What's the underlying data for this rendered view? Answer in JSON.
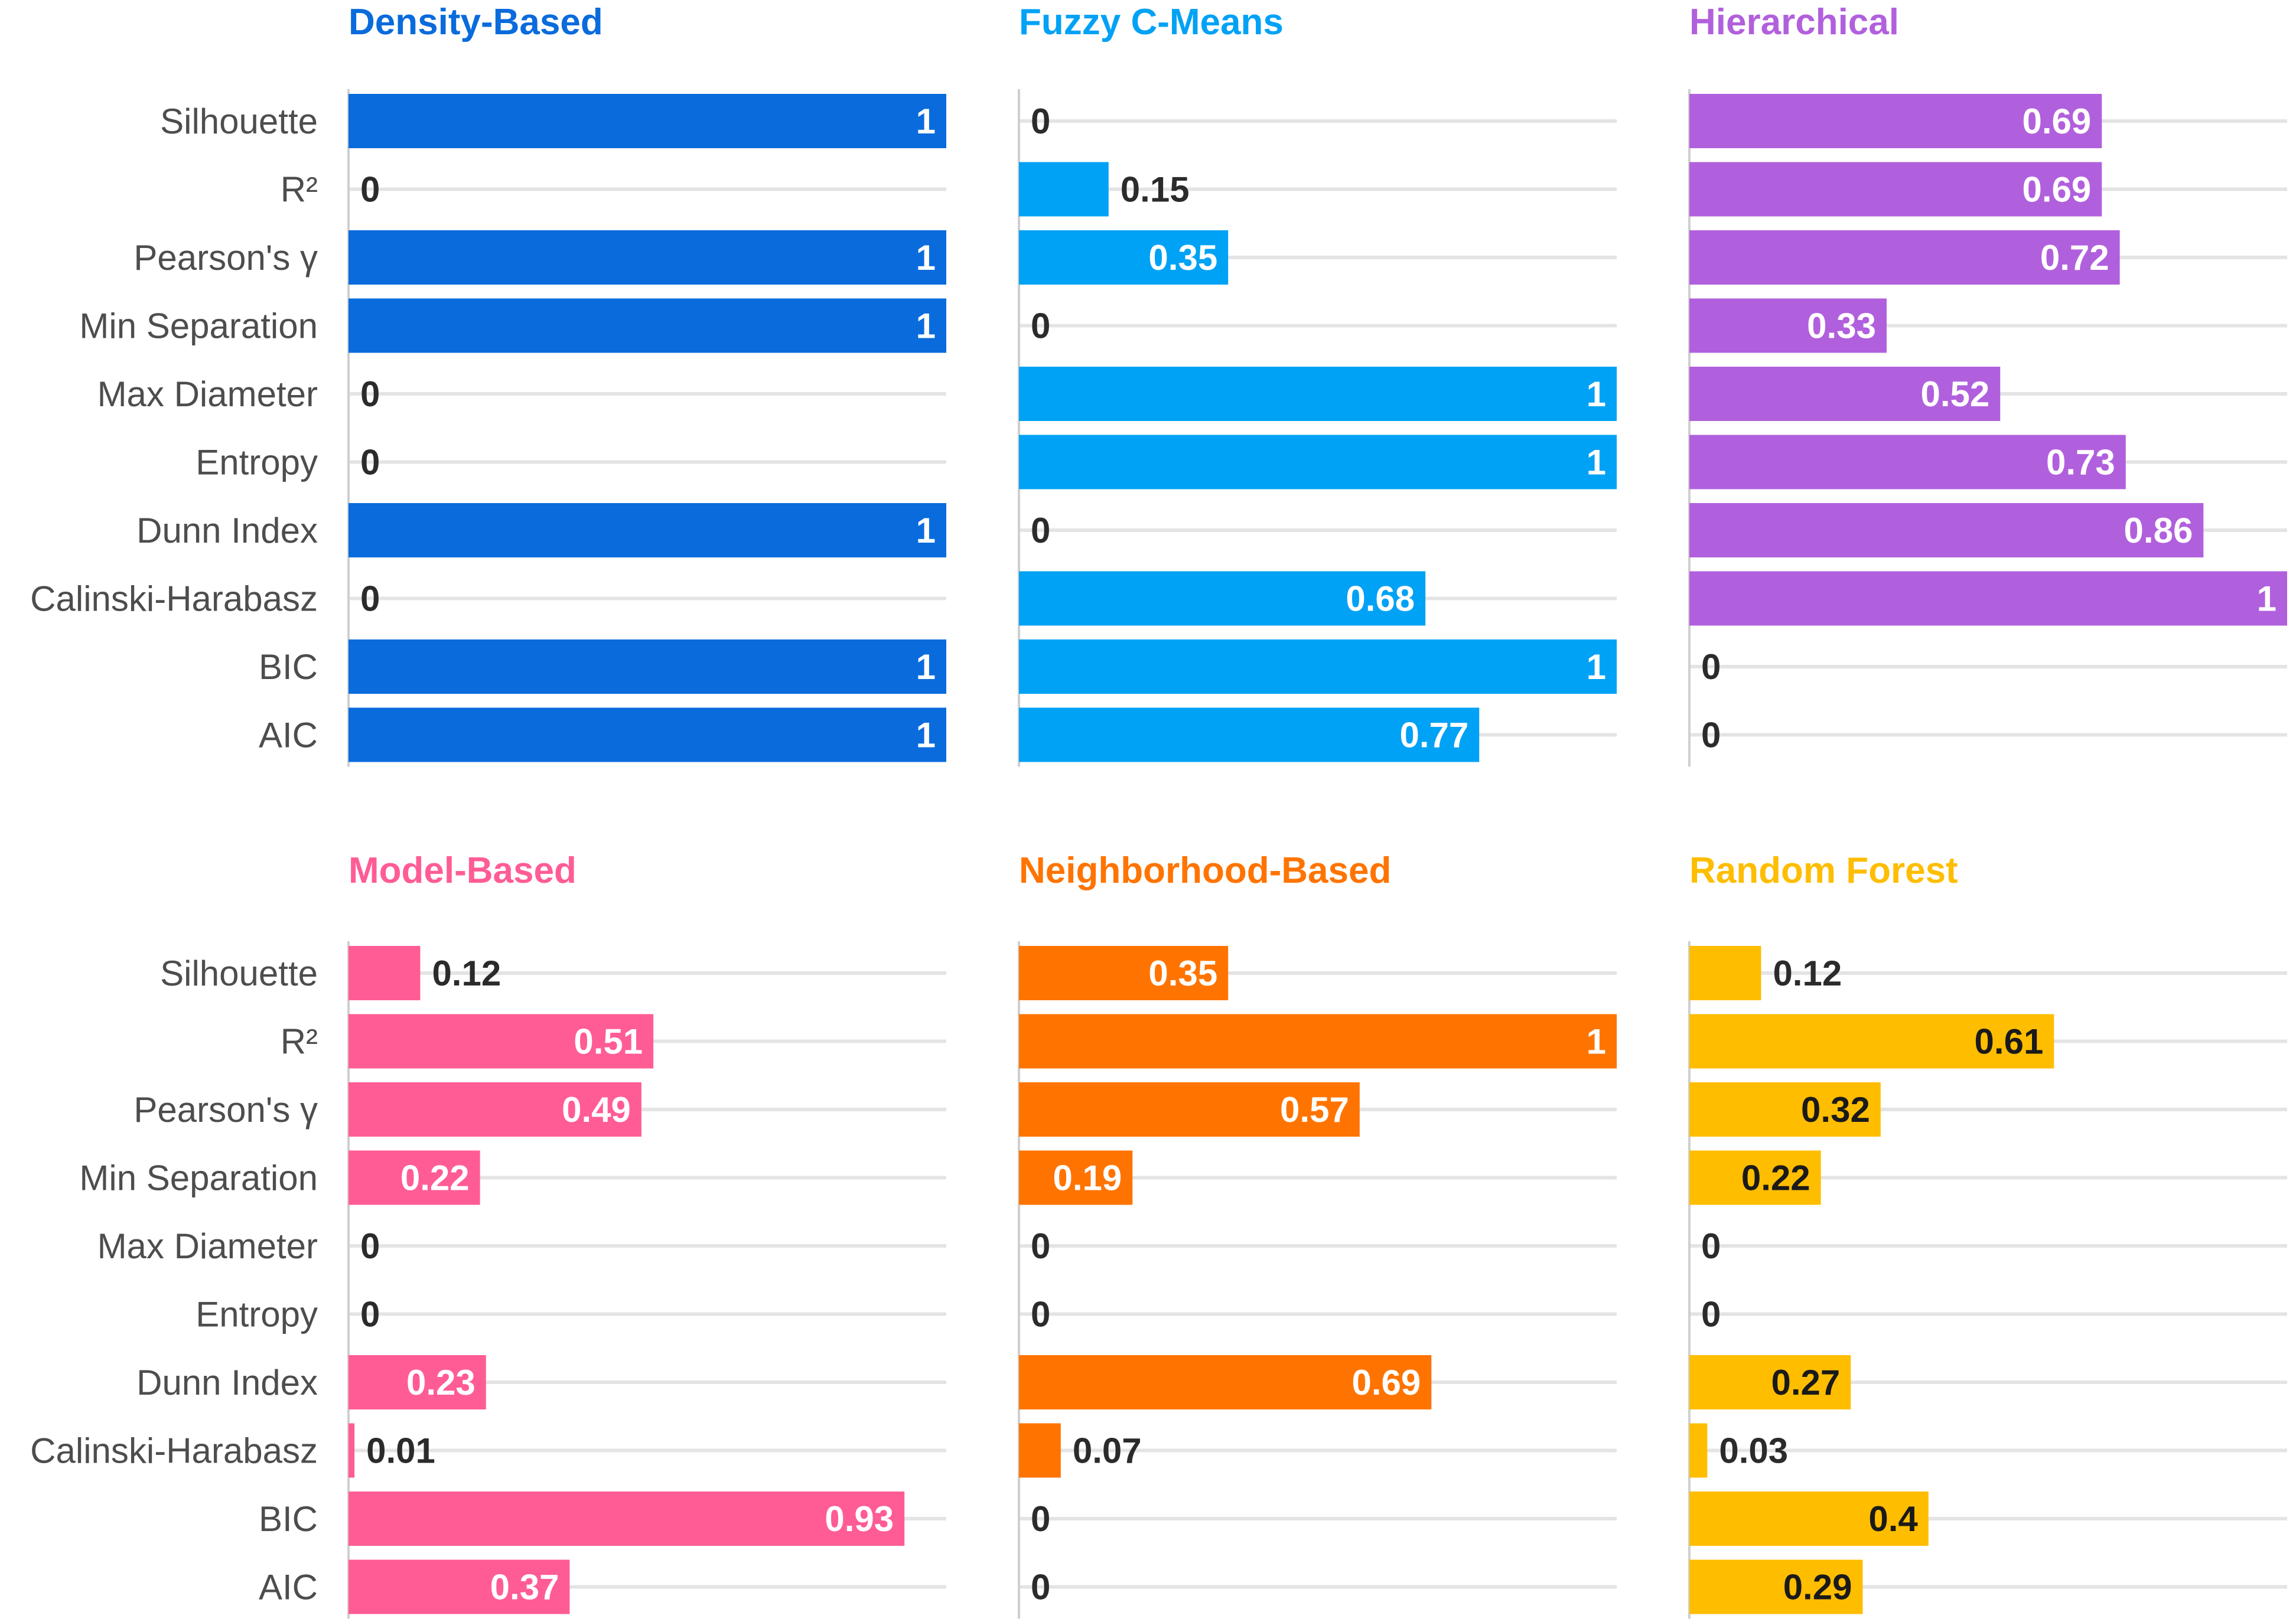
{
  "chart_data": [
    {
      "type": "bar",
      "orientation": "horizontal",
      "title": "Density-Based",
      "color": "#0a6bdc",
      "categories": [
        "Silhouette",
        "R²",
        "Pearson's γ",
        "Min Separation",
        "Max Diameter",
        "Entropy",
        "Dunn Index",
        "Calinski-Harabasz",
        "BIC",
        "AIC"
      ],
      "values": [
        1,
        0,
        1,
        1,
        0,
        0,
        1,
        0,
        1,
        1
      ],
      "labels": [
        "1",
        "0",
        "1",
        "1",
        "0",
        "0",
        "1",
        "0",
        "1",
        "1"
      ],
      "xlim": [
        0,
        1
      ],
      "grid": true
    },
    {
      "type": "bar",
      "orientation": "horizontal",
      "title": "Fuzzy C-Means",
      "color": "#00a2f5",
      "categories": [
        "Silhouette",
        "R²",
        "Pearson's γ",
        "Min Separation",
        "Max Diameter",
        "Entropy",
        "Dunn Index",
        "Calinski-Harabasz",
        "BIC",
        "AIC"
      ],
      "values": [
        0,
        0.15,
        0.35,
        0,
        1,
        1,
        0,
        0.68,
        1,
        0.77
      ],
      "labels": [
        "0",
        "0.15",
        "0.35",
        "0",
        "1",
        "1",
        "0",
        "0.68",
        "1",
        "0.77"
      ],
      "xlim": [
        0,
        1
      ],
      "grid": true
    },
    {
      "type": "bar",
      "orientation": "horizontal",
      "title": "Hierarchical",
      "color": "#b160dd",
      "categories": [
        "Silhouette",
        "R²",
        "Pearson's γ",
        "Min Separation",
        "Max Diameter",
        "Entropy",
        "Dunn Index",
        "Calinski-Harabasz",
        "BIC",
        "AIC"
      ],
      "values": [
        0.69,
        0.69,
        0.72,
        0.33,
        0.52,
        0.73,
        0.86,
        1,
        0,
        0
      ],
      "labels": [
        "0.69",
        "0.69",
        "0.72",
        "0.33",
        "0.52",
        "0.73",
        "0.86",
        "1",
        "0",
        "0"
      ],
      "xlim": [
        0,
        1
      ],
      "grid": true
    },
    {
      "type": "bar",
      "orientation": "horizontal",
      "title": "Model-Based",
      "color": "#ff5c96",
      "categories": [
        "Silhouette",
        "R²",
        "Pearson's γ",
        "Min Separation",
        "Max Diameter",
        "Entropy",
        "Dunn Index",
        "Calinski-Harabasz",
        "BIC",
        "AIC"
      ],
      "values": [
        0.12,
        0.51,
        0.49,
        0.22,
        0,
        0,
        0.23,
        0.01,
        0.93,
        0.37
      ],
      "labels": [
        "0.12",
        "0.51",
        "0.49",
        "0.22",
        "0",
        "0",
        "0.23",
        "0.01",
        "0.93",
        "0.37"
      ],
      "xlim": [
        0,
        1
      ],
      "grid": true
    },
    {
      "type": "bar",
      "orientation": "horizontal",
      "title": "Neighborhood-Based",
      "color": "#ff7400",
      "categories": [
        "Silhouette",
        "R²",
        "Pearson's γ",
        "Min Separation",
        "Max Diameter",
        "Entropy",
        "Dunn Index",
        "Calinski-Harabasz",
        "BIC",
        "AIC"
      ],
      "values": [
        0.35,
        1,
        0.57,
        0.19,
        0,
        0,
        0.69,
        0.07,
        0,
        0
      ],
      "labels": [
        "0.35",
        "1",
        "0.57",
        "0.19",
        "0",
        "0",
        "0.69",
        "0.07",
        "0",
        "0"
      ],
      "xlim": [
        0,
        1
      ],
      "grid": true
    },
    {
      "type": "bar",
      "orientation": "horizontal",
      "title": "Random Forest",
      "color": "#ffbd00",
      "categories": [
        "Silhouette",
        "R²",
        "Pearson's γ",
        "Min Separation",
        "Max Diameter",
        "Entropy",
        "Dunn Index",
        "Calinski-Harabasz",
        "BIC",
        "AIC"
      ],
      "values": [
        0.12,
        0.61,
        0.32,
        0.22,
        0,
        0,
        0.27,
        0.03,
        0.4,
        0.29
      ],
      "labels": [
        "0.12",
        "0.61",
        "0.32",
        "0.22",
        "0",
        "0",
        "0.27",
        "0.03",
        "0.4",
        "0.29"
      ],
      "xlim": [
        0,
        1
      ],
      "grid": true
    }
  ]
}
